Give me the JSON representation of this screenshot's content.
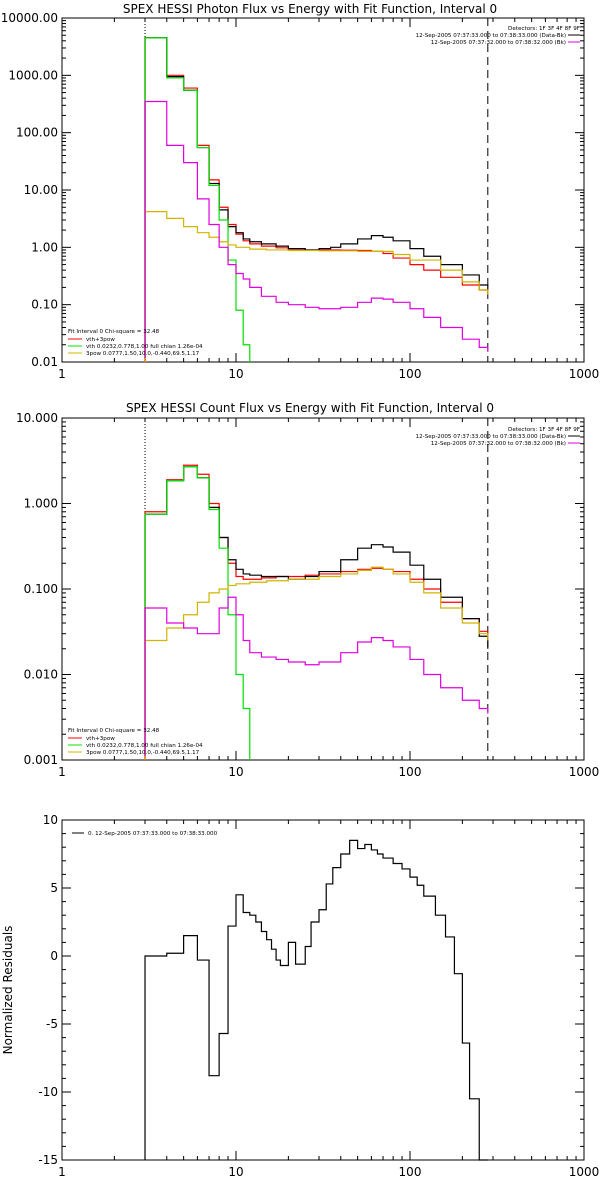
{
  "colors": {
    "black": "#000000",
    "red": "#ff0000",
    "green": "#00e000",
    "yellow": "#d0b400",
    "magenta": "#e000e0",
    "orange": "#ff9900"
  },
  "chart_data": [
    {
      "type": "line",
      "title": "SPEX HESSI Photon Flux vs Energy with Fit Function, Interval 0",
      "xscale": "log",
      "yscale": "log",
      "xlim": [
        1,
        1000
      ],
      "ylim": [
        0.01,
        10000
      ],
      "xticks": [
        "1",
        "10",
        "100",
        "1000"
      ],
      "yticks": [
        "0.01",
        "0.10",
        "1.00",
        "10.00",
        "100.00",
        "1000.00",
        "10000.00"
      ],
      "vlines": {
        "dotted": 3,
        "dashed": 280
      },
      "legend_top": [
        "Detectors: 1F 3F 4F 8F 9F",
        "12-Sep-2005 07:37:33.000 to 07:38:33.000 (Data-Bk)",
        "12-Sep-2005 07:37:32.000 to 07:38:32.000 (Bk)"
      ],
      "legend_bottom": [
        "Fit Interval  0    Chi-square = 32.48",
        "vth+3pow",
        "vth 0.0232,0.778,1.00   full chian 1.26e-04",
        "3pow 0.0777,1.50,10.0,-0.440,69.5,1.17"
      ],
      "series": [
        {
          "name": "vth+3pow",
          "color": "red",
          "x": [
            3,
            3.5,
            4,
            5,
            6,
            7,
            8,
            9,
            10,
            11,
            12,
            14,
            17,
            20,
            25,
            30,
            40,
            50,
            60,
            70,
            80,
            100,
            120,
            150,
            200,
            250,
            280
          ],
          "y": [
            4500,
            4500,
            1000,
            600,
            60,
            15,
            5,
            2.5,
            1.7,
            1.3,
            1.15,
            1.05,
            0.98,
            0.93,
            0.9,
            0.9,
            0.89,
            0.88,
            0.85,
            0.78,
            0.65,
            0.5,
            0.4,
            0.3,
            0.22,
            0.18,
            0.15
          ]
        },
        {
          "name": "Data-Bk",
          "color": "black",
          "x": [
            3,
            3.5,
            4,
            5,
            6,
            7,
            8,
            9,
            10,
            11,
            12,
            14,
            17,
            20,
            25,
            30,
            35,
            40,
            50,
            60,
            70,
            80,
            100,
            120,
            150,
            200,
            250,
            280
          ],
          "y": [
            4500,
            4500,
            950,
            550,
            55,
            13,
            4.5,
            2.3,
            1.8,
            1.4,
            1.25,
            1.15,
            1.05,
            0.95,
            0.9,
            0.95,
            1.0,
            1.15,
            1.4,
            1.6,
            1.5,
            1.3,
            0.95,
            0.7,
            0.5,
            0.33,
            0.22,
            0.18
          ]
        },
        {
          "name": "vth",
          "color": "green",
          "x": [
            3,
            3.5,
            4,
            5,
            6,
            7,
            8,
            9,
            10,
            11,
            12
          ],
          "y": [
            4500,
            4500,
            900,
            550,
            55,
            12,
            3,
            0.6,
            0.08,
            0.02,
            0.01
          ]
        },
        {
          "name": "3pow",
          "color": "yellow",
          "x": [
            3,
            3.5,
            4,
            5,
            6,
            7,
            8,
            9,
            10,
            12,
            15,
            20,
            30,
            50,
            80,
            100,
            150,
            200,
            250,
            280
          ],
          "y": [
            4.2,
            4.2,
            3.2,
            2.3,
            1.8,
            1.5,
            1.25,
            1.1,
            1.0,
            0.93,
            0.9,
            0.88,
            0.87,
            0.85,
            0.75,
            0.6,
            0.4,
            0.25,
            0.18,
            0.15
          ]
        },
        {
          "name": "Bk",
          "color": "magenta",
          "x": [
            3,
            3.5,
            4,
            5,
            6,
            7,
            8,
            9,
            10,
            11,
            12,
            14,
            17,
            20,
            25,
            30,
            40,
            50,
            60,
            70,
            80,
            100,
            120,
            150,
            200,
            250,
            280
          ],
          "y": [
            350,
            350,
            60,
            30,
            7,
            2.5,
            1.0,
            0.5,
            0.35,
            0.28,
            0.2,
            0.14,
            0.11,
            0.1,
            0.09,
            0.085,
            0.09,
            0.11,
            0.13,
            0.125,
            0.11,
            0.085,
            0.06,
            0.04,
            0.025,
            0.018,
            0.015
          ]
        }
      ]
    },
    {
      "type": "line",
      "title": "SPEX HESSI Count Flux vs Energy with Fit Function, Interval 0",
      "xscale": "log",
      "yscale": "log",
      "xlim": [
        1,
        1000
      ],
      "ylim": [
        0.001,
        10
      ],
      "xticks": [
        "1",
        "10",
        "100",
        "1000"
      ],
      "yticks": [
        "0.001",
        "0.010",
        "0.100",
        "1.000",
        "10.000"
      ],
      "vlines": {
        "dotted": 3,
        "dashed": 280
      },
      "legend_top": [
        "Detectors: 1F 3F 4F 8F 9F",
        "12-Sep-2005 07:37:33.000 to 07:38:33.000 (Data-Bk)",
        "12-Sep-2005 07:37:32.000 to 07:38:32.000 (Bk)"
      ],
      "legend_bottom": [
        "Fit Interval  0    Chi-square = 32.48",
        "vth+3pow",
        "vth 0.0232,0.778,1.00   full chian 1.26e-04",
        "3pow 0.0777,1.50,10.0,-0.440,69.5,1.17"
      ],
      "series": [
        {
          "name": "vth+3pow",
          "color": "red",
          "x": [
            3,
            4,
            5,
            6,
            7,
            8,
            9,
            10,
            11,
            12,
            14,
            17,
            20,
            25,
            30,
            40,
            50,
            60,
            70,
            80,
            100,
            120,
            150,
            200,
            250,
            280
          ],
          "y": [
            0.8,
            1.9,
            2.8,
            2.2,
            1.0,
            0.4,
            0.2,
            0.14,
            0.13,
            0.13,
            0.135,
            0.14,
            0.14,
            0.145,
            0.15,
            0.16,
            0.17,
            0.175,
            0.17,
            0.16,
            0.13,
            0.1,
            0.07,
            0.045,
            0.032,
            0.025
          ]
        },
        {
          "name": "Data-Bk",
          "color": "black",
          "x": [
            3,
            4,
            5,
            6,
            7,
            8,
            9,
            10,
            11,
            12,
            14,
            17,
            20,
            25,
            30,
            40,
            50,
            60,
            70,
            80,
            100,
            120,
            150,
            200,
            250,
            280
          ],
          "y": [
            0.75,
            1.85,
            2.7,
            2.0,
            0.9,
            0.4,
            0.22,
            0.17,
            0.15,
            0.145,
            0.14,
            0.14,
            0.13,
            0.14,
            0.16,
            0.22,
            0.3,
            0.33,
            0.31,
            0.27,
            0.19,
            0.13,
            0.08,
            0.045,
            0.028,
            0.02
          ]
        },
        {
          "name": "vth",
          "color": "green",
          "x": [
            3,
            4,
            5,
            6,
            7,
            8,
            9,
            10,
            11,
            12
          ],
          "y": [
            0.75,
            1.85,
            2.7,
            2.0,
            0.85,
            0.3,
            0.05,
            0.01,
            0.004,
            0.001
          ]
        },
        {
          "name": "3pow",
          "color": "yellow",
          "x": [
            3,
            3.5,
            4,
            5,
            6,
            7,
            8,
            9,
            10,
            12,
            15,
            20,
            30,
            40,
            50,
            60,
            70,
            80,
            100,
            120,
            150,
            200,
            250,
            280
          ],
          "y": [
            0.025,
            0.025,
            0.035,
            0.05,
            0.07,
            0.09,
            0.1,
            0.11,
            0.115,
            0.12,
            0.125,
            0.13,
            0.14,
            0.15,
            0.165,
            0.18,
            0.17,
            0.15,
            0.12,
            0.09,
            0.06,
            0.04,
            0.03,
            0.025
          ]
        },
        {
          "name": "Bk",
          "color": "magenta",
          "x": [
            3,
            4,
            5,
            6,
            7,
            8,
            9,
            10,
            11,
            12,
            14,
            17,
            20,
            25,
            30,
            40,
            50,
            60,
            70,
            80,
            100,
            120,
            150,
            200,
            250,
            280
          ],
          "y": [
            0.06,
            0.04,
            0.035,
            0.03,
            0.03,
            0.06,
            0.08,
            0.05,
            0.025,
            0.018,
            0.016,
            0.015,
            0.014,
            0.013,
            0.014,
            0.018,
            0.024,
            0.027,
            0.025,
            0.021,
            0.015,
            0.01,
            0.007,
            0.005,
            0.004,
            0.0035
          ]
        }
      ]
    },
    {
      "type": "line",
      "title": "",
      "xscale": "log",
      "yscale": "linear",
      "ylabel": "Normalized Residuals",
      "xlim": [
        1,
        1000
      ],
      "ylim": [
        -15,
        10
      ],
      "xticks": [
        "1",
        "10",
        "100",
        "1000"
      ],
      "yticks": [
        "-15",
        "-10",
        "-5",
        "0",
        "5",
        "10"
      ],
      "legend_top": [
        "0. 12-Sep-2005 07:37:33.000 to 07:38:33.000"
      ],
      "series": [
        {
          "color": "black",
          "x": [
            3,
            4,
            5,
            6,
            7,
            8,
            9,
            10,
            11,
            12,
            13,
            14,
            15,
            16,
            17,
            18,
            20,
            22,
            25,
            27,
            30,
            33,
            36,
            40,
            45,
            50,
            55,
            60,
            65,
            70,
            80,
            90,
            100,
            110,
            120,
            140,
            160,
            180,
            200,
            220,
            250,
            280
          ],
          "y": [
            0,
            0.2,
            1.5,
            -0.3,
            -8.8,
            -5.7,
            2.2,
            4.5,
            3.2,
            3.0,
            2.5,
            1.8,
            1.2,
            0.5,
            -0.3,
            -0.7,
            1.0,
            -0.6,
            0.7,
            2.5,
            3.4,
            5.3,
            6.5,
            7.5,
            8.5,
            7.9,
            8.2,
            7.8,
            7.5,
            7.2,
            6.8,
            6.4,
            5.8,
            5.2,
            4.4,
            3.0,
            1.4,
            -1.3,
            -6.4,
            -10.5,
            -15,
            -15
          ]
        }
      ]
    }
  ]
}
